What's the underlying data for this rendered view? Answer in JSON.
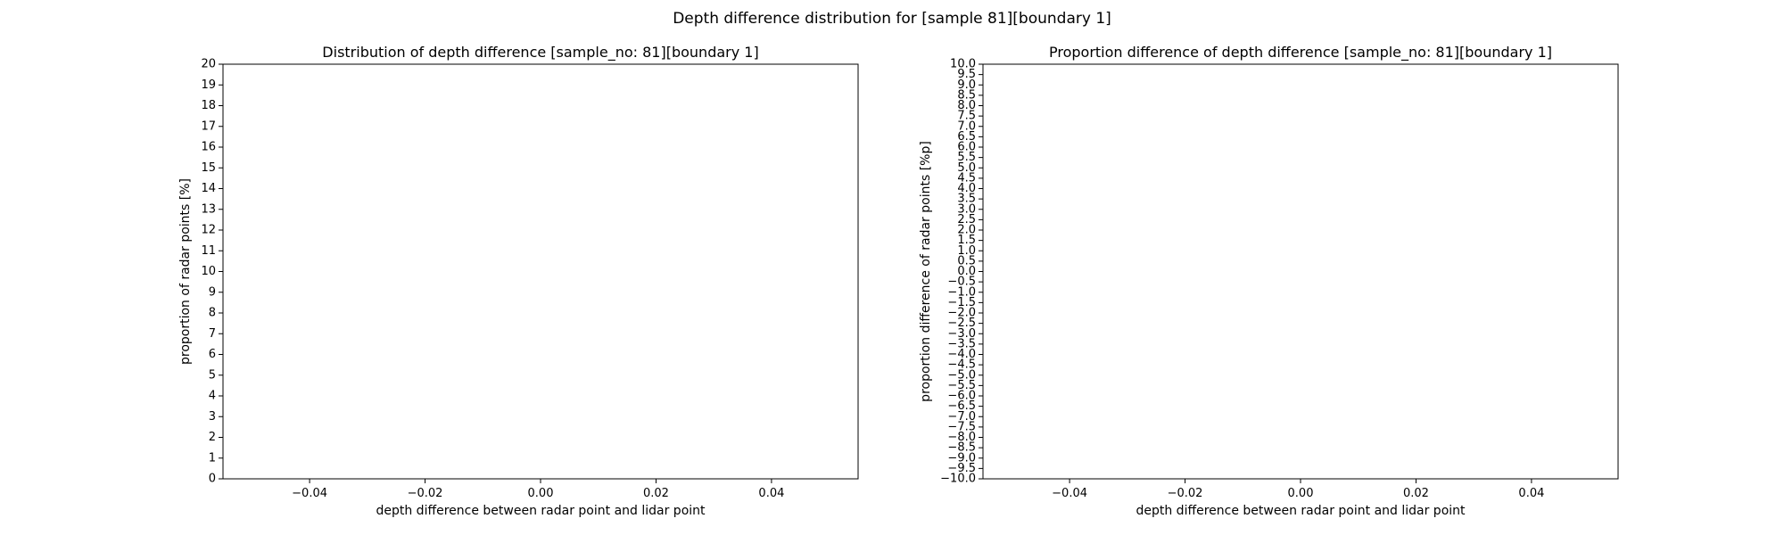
{
  "figure": {
    "title": "Depth difference distribution for [sample 81][boundary 1]"
  },
  "chart_data": [
    {
      "type": "bar",
      "title": "Distribution of depth difference [sample_no: 81][boundary 1]",
      "xlabel": "depth difference between radar point and lidar point",
      "ylabel": "proportion of radar points [%]",
      "xlim": [
        -0.055,
        0.055
      ],
      "ylim": [
        0,
        20
      ],
      "xticks": [
        -0.04,
        -0.02,
        0.0,
        0.02,
        0.04
      ],
      "xtick_labels": [
        "−0.04",
        "−0.02",
        "0.00",
        "0.02",
        "0.04"
      ],
      "yticks": [
        0,
        1,
        2,
        3,
        4,
        5,
        6,
        7,
        8,
        9,
        10,
        11,
        12,
        13,
        14,
        15,
        16,
        17,
        18,
        19,
        20
      ],
      "ytick_labels": [
        "0",
        "1",
        "2",
        "3",
        "4",
        "5",
        "6",
        "7",
        "8",
        "9",
        "10",
        "11",
        "12",
        "13",
        "14",
        "15",
        "16",
        "17",
        "18",
        "19",
        "20"
      ],
      "x": [],
      "values": [],
      "grid": false
    },
    {
      "type": "bar",
      "title": "Proportion difference of depth difference [sample_no: 81][boundary 1]",
      "xlabel": "depth difference between radar point and lidar point",
      "ylabel": "proportion difference of radar points [%p]",
      "xlim": [
        -0.055,
        0.055
      ],
      "ylim": [
        -10,
        10
      ],
      "xticks": [
        -0.04,
        -0.02,
        0.0,
        0.02,
        0.04
      ],
      "xtick_labels": [
        "−0.04",
        "−0.02",
        "0.00",
        "0.02",
        "0.04"
      ],
      "yticks": [
        -10,
        -9.5,
        -9,
        -8.5,
        -8,
        -7.5,
        -7,
        -6.5,
        -6,
        -5.5,
        -5,
        -4.5,
        -4,
        -3.5,
        -3,
        -2.5,
        -2,
        -1.5,
        -1,
        -0.5,
        0,
        0.5,
        1,
        1.5,
        2,
        2.5,
        3,
        3.5,
        4,
        4.5,
        5,
        5.5,
        6,
        6.5,
        7,
        7.5,
        8,
        8.5,
        9,
        9.5,
        10
      ],
      "ytick_labels": [
        "−10.0",
        "−9.5",
        "−9.0",
        "−8.5",
        "−8.0",
        "−7.5",
        "−7.0",
        "−6.5",
        "−6.0",
        "−5.5",
        "−5.0",
        "−4.5",
        "−4.0",
        "−3.5",
        "−3.0",
        "−2.5",
        "−2.0",
        "−1.5",
        "−1.0",
        "−0.5",
        "0.0",
        "0.5",
        "1.0",
        "1.5",
        "2.0",
        "2.5",
        "3.0",
        "3.5",
        "4.0",
        "4.5",
        "5.0",
        "5.5",
        "6.0",
        "6.5",
        "7.0",
        "7.5",
        "8.0",
        "8.5",
        "9.0",
        "9.5",
        "10.0"
      ],
      "x": [],
      "values": [],
      "grid": false
    }
  ]
}
